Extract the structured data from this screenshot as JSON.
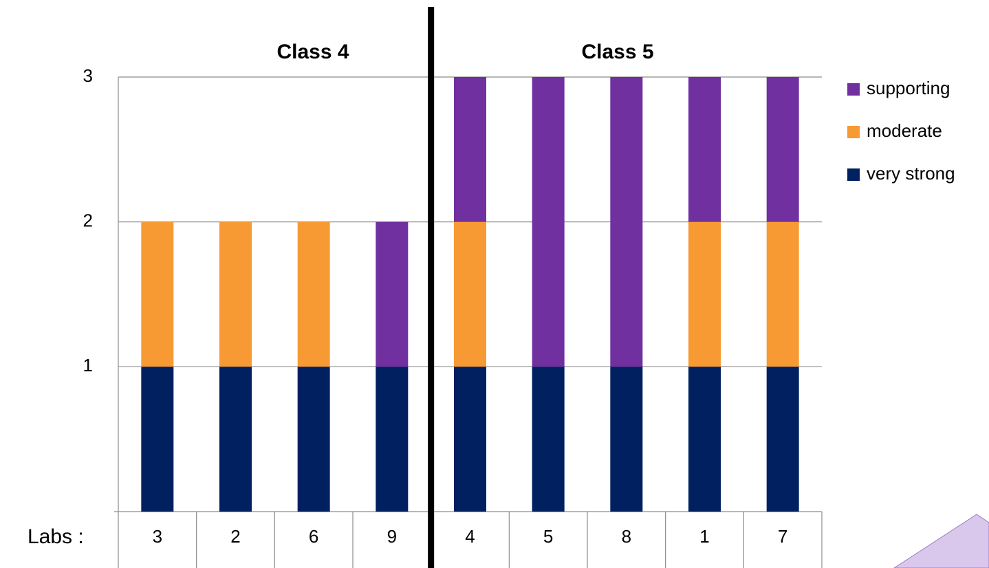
{
  "chart_data": {
    "type": "stacked-bar",
    "annotations": [
      "Class 4",
      "Class 5",
      "Labs :"
    ],
    "categories": [
      "3",
      "2",
      "6",
      "9",
      "4",
      "5",
      "8",
      "1",
      "7"
    ],
    "series": [
      {
        "name": "very strong",
        "color": "#002060",
        "values": [
          1,
          1,
          1,
          1,
          1,
          1,
          1,
          1,
          1
        ]
      },
      {
        "name": "moderate",
        "color": "#F79A33",
        "values": [
          1,
          1,
          1,
          0,
          1,
          0,
          0,
          1,
          1
        ]
      },
      {
        "name": "supporting",
        "color": "#7030A0",
        "values": [
          0,
          0,
          0,
          1,
          1,
          2,
          2,
          1,
          1
        ]
      }
    ],
    "ylim": [
      0,
      3
    ],
    "yticks": [
      1,
      2,
      3
    ],
    "grid": true,
    "legend": "right"
  }
}
